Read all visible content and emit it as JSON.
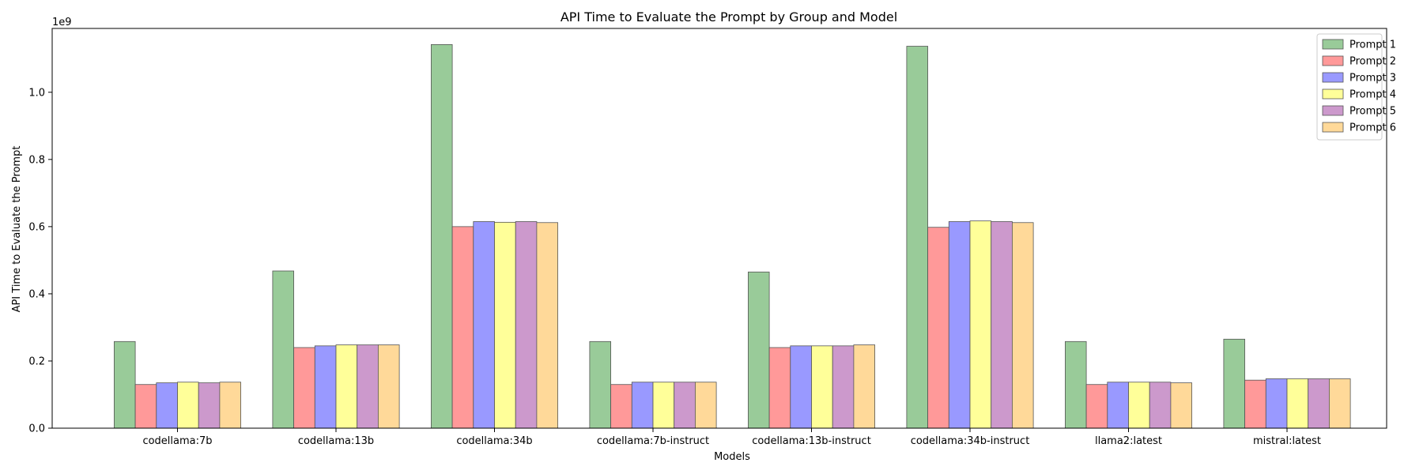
{
  "chart_data": {
    "type": "bar",
    "title": "API Time to Evaluate the Prompt by Group and Model",
    "xlabel": "Models",
    "ylabel": "API Time to Evaluate the Prompt",
    "y_offset_label": "1e9",
    "ylim": [
      0,
      1.19
    ],
    "yticks": [
      "0.0",
      "0.2",
      "0.4",
      "0.6",
      "0.8",
      "1.0"
    ],
    "grid": false,
    "legend_position": "top-right",
    "categories": [
      "codellama:7b",
      "codellama:13b",
      "codellama:34b",
      "codellama:7b-instruct",
      "codellama:13b-instruct",
      "codellama:34b-instruct",
      "llama2:latest",
      "mistral:latest"
    ],
    "series": [
      {
        "name": "Prompt 1",
        "color": "#99cb99",
        "values": [
          0.258,
          0.468,
          1.142,
          0.258,
          0.465,
          1.137,
          0.258,
          0.265
        ]
      },
      {
        "name": "Prompt 2",
        "color": "#ff9999",
        "values": [
          0.13,
          0.24,
          0.6,
          0.13,
          0.24,
          0.598,
          0.13,
          0.143
        ]
      },
      {
        "name": "Prompt 3",
        "color": "#9999ff",
        "values": [
          0.135,
          0.245,
          0.615,
          0.137,
          0.245,
          0.615,
          0.137,
          0.147
        ]
      },
      {
        "name": "Prompt 4",
        "color": "#ffff99",
        "values": [
          0.137,
          0.248,
          0.613,
          0.137,
          0.245,
          0.617,
          0.137,
          0.147
        ]
      },
      {
        "name": "Prompt 5",
        "color": "#cc99cc",
        "values": [
          0.135,
          0.248,
          0.615,
          0.137,
          0.245,
          0.615,
          0.137,
          0.147
        ]
      },
      {
        "name": "Prompt 6",
        "color": "#ffd999",
        "values": [
          0.137,
          0.248,
          0.612,
          0.137,
          0.248,
          0.612,
          0.135,
          0.147
        ]
      }
    ]
  }
}
